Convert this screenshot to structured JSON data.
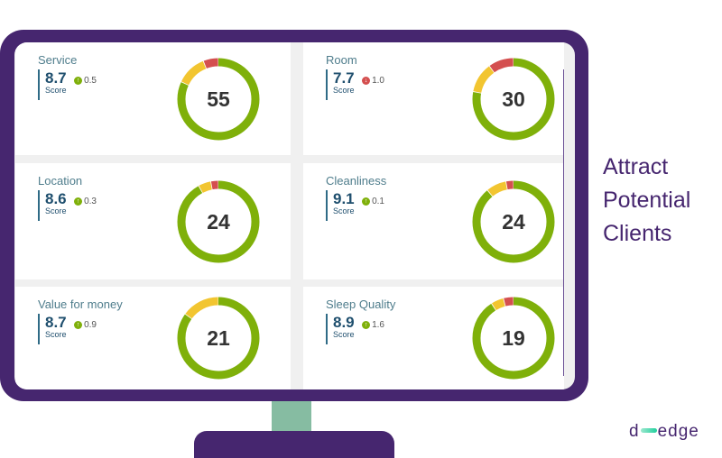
{
  "cards": [
    {
      "title": "Service",
      "score": "8.7",
      "delta": "0.5",
      "trend": "up",
      "score_label": "Score",
      "count": "55",
      "segments": {
        "green": 0.82,
        "yellow": 0.12,
        "red": 0.06
      }
    },
    {
      "title": "Room",
      "score": "7.7",
      "delta": "1.0",
      "trend": "down",
      "score_label": "Score",
      "count": "30",
      "segments": {
        "green": 0.78,
        "yellow": 0.12,
        "red": 0.1
      }
    },
    {
      "title": "Location",
      "score": "8.6",
      "delta": "0.3",
      "trend": "up",
      "score_label": "Score",
      "count": "24",
      "segments": {
        "green": 0.92,
        "yellow": 0.05,
        "red": 0.03
      }
    },
    {
      "title": "Cleanliness",
      "score": "9.1",
      "delta": "0.1",
      "trend": "up",
      "score_label": "Score",
      "count": "24",
      "segments": {
        "green": 0.89,
        "yellow": 0.08,
        "red": 0.03
      }
    },
    {
      "title": "Value for money",
      "score": "8.7",
      "delta": "0.9",
      "trend": "up",
      "score_label": "Score",
      "count": "21",
      "segments": {
        "green": 0.85,
        "yellow": 0.15,
        "red": 0
      }
    },
    {
      "title": "Sleep Quality",
      "score": "8.9",
      "delta": "1.6",
      "trend": "up",
      "score_label": "Score",
      "count": "19",
      "segments": {
        "green": 0.91,
        "yellow": 0.05,
        "red": 0.04
      }
    }
  ],
  "colors": {
    "green": "#7fb00a",
    "yellow": "#f2c530",
    "red": "#d44f4f",
    "up": "#7fb00a",
    "down": "#d44f4f",
    "brand": "#46266f"
  },
  "tagline": [
    "Attract",
    "Potential",
    "Clients"
  ],
  "logo": {
    "left": "d",
    "right": "edge"
  }
}
